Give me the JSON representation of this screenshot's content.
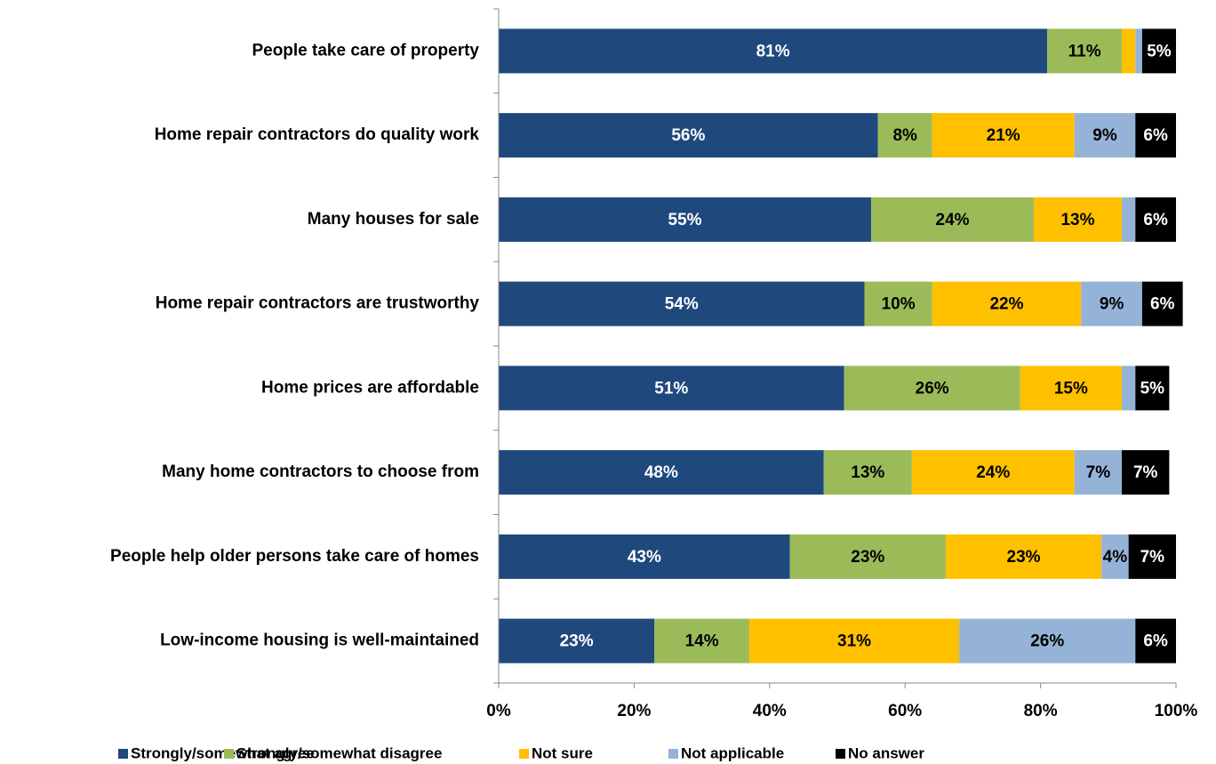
{
  "chart_data": {
    "type": "stacked-bar-horizontal",
    "categories": [
      "People take care of property",
      "Home repair contractors do quality work",
      "Many houses for sale",
      "Home repair contractors are trustworthy",
      "Home prices are affordable",
      "Many home contractors to choose from",
      "People help older  persons take care of homes",
      "Low-income housing is well-maintained"
    ],
    "series": [
      {
        "name": "Strongly/somewhat agree",
        "color": "#1f497d",
        "label_color": "#ffffff",
        "values": [
          81,
          56,
          55,
          54,
          51,
          48,
          43,
          23
        ],
        "value_labels": [
          "81%",
          "56%",
          "55%",
          "54%",
          "51%",
          "48%",
          "43%",
          "23%"
        ]
      },
      {
        "name": "Strongly/somewhat disagree",
        "color": "#9bbb59",
        "label_color": "#000000",
        "values": [
          11,
          8,
          24,
          10,
          26,
          13,
          23,
          14
        ],
        "value_labels": [
          "11%",
          "8%",
          "24%",
          "10%",
          "26%",
          "13%",
          "23%",
          "14%"
        ]
      },
      {
        "name": "Not sure",
        "color": "#ffc000",
        "label_color": "#000000",
        "values": [
          2,
          21,
          13,
          22,
          15,
          24,
          23,
          31
        ],
        "value_labels": [
          null,
          "21%",
          "13%",
          "22%",
          "15%",
          "24%",
          "23%",
          "31%"
        ]
      },
      {
        "name": "Not applicable",
        "color": "#95b3d7",
        "label_color": "#000000",
        "values": [
          1,
          9,
          2,
          9,
          2,
          7,
          4,
          26
        ],
        "value_labels": [
          null,
          "9%",
          null,
          "9%",
          null,
          "7%",
          "4%",
          "26%"
        ]
      },
      {
        "name": "No answer",
        "color": "#000000",
        "label_color": "#ffffff",
        "values": [
          5,
          6,
          6,
          6,
          5,
          7,
          7,
          6
        ],
        "value_labels": [
          "5%",
          "6%",
          "6%",
          "6%",
          "5%",
          "7%",
          "7%",
          "6%"
        ]
      }
    ],
    "xlim": [
      0,
      100
    ],
    "xticks": [
      {
        "value": 0,
        "label": "0%"
      },
      {
        "value": 20,
        "label": "20%"
      },
      {
        "value": 40,
        "label": "40%"
      },
      {
        "value": 60,
        "label": "60%"
      },
      {
        "value": 80,
        "label": "80%"
      },
      {
        "value": 100,
        "label": "100%"
      }
    ],
    "legend": "bottom"
  }
}
